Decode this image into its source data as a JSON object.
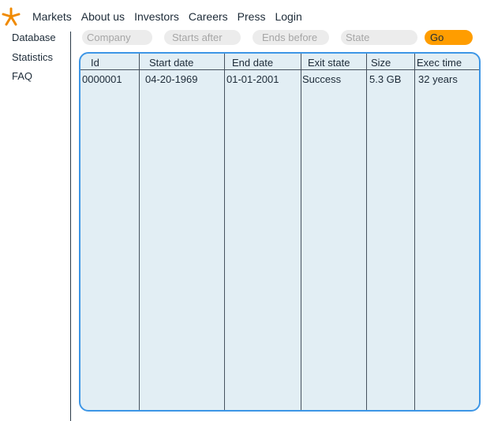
{
  "nav": {
    "items": [
      "Markets",
      "About us",
      "Investors",
      "Careers",
      "Press",
      "Login"
    ]
  },
  "sidebar": {
    "items": [
      "Database",
      "Statistics",
      "FAQ"
    ]
  },
  "filters": {
    "company_placeholder": "Company",
    "starts_after_placeholder": "Starts after",
    "ends_before_placeholder": "Ends before",
    "state_placeholder": "State",
    "go_label": "Go"
  },
  "table": {
    "columns": [
      "Id",
      "Start date",
      "End date",
      "Exit state",
      "Size",
      "Exec time"
    ],
    "rows": [
      [
        "0000001",
        "04-20-1969",
        "01-01-2001",
        "Success",
        "5.3 GB",
        "32 years"
      ]
    ]
  },
  "colors": {
    "accent": "#ff9d00",
    "table_border": "#3d96e6",
    "table_bg": "#e2eef4",
    "logo": "#f08a00"
  },
  "icons": {
    "logo": "asterisk-star-logo"
  }
}
